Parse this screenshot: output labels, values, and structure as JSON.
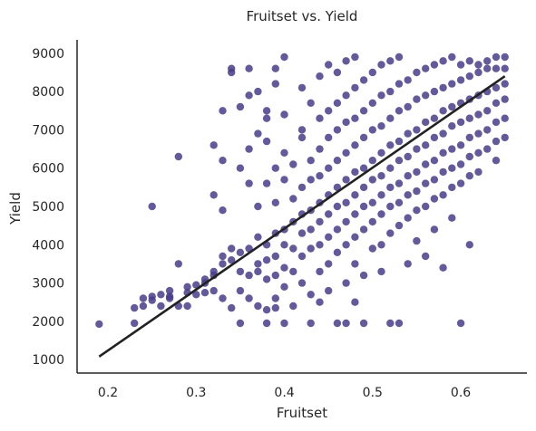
{
  "chart_data": {
    "type": "scatter",
    "title": "Fruitset vs. Yield",
    "xlabel": "Fruitset",
    "ylabel": "Yield",
    "xlim": [
      0.165,
      0.675
    ],
    "ylim": [
      650,
      9350
    ],
    "x_ticks": [
      0.2,
      0.3,
      0.4,
      0.5,
      0.6
    ],
    "x_tick_labels": [
      "0.2",
      "0.3",
      "0.4",
      "0.5",
      "0.6"
    ],
    "y_ticks": [
      1000,
      2000,
      3000,
      4000,
      5000,
      6000,
      7000,
      8000,
      9000
    ],
    "y_tick_labels": [
      "1000",
      "2000",
      "3000",
      "4000",
      "5000",
      "6000",
      "7000",
      "8000",
      "9000"
    ],
    "grid": false,
    "point_color": "#483d8b",
    "line_color": "#222222",
    "regression_line": {
      "x": [
        0.19,
        0.65
      ],
      "y": [
        1080,
        8400
      ]
    },
    "series": [
      {
        "points": [
          [
            0.19,
            1930
          ],
          [
            0.23,
            1950
          ],
          [
            0.23,
            2350
          ],
          [
            0.24,
            2400
          ],
          [
            0.24,
            2600
          ],
          [
            0.25,
            2650
          ],
          [
            0.25,
            2550
          ],
          [
            0.25,
            5000
          ],
          [
            0.26,
            2700
          ],
          [
            0.26,
            2400
          ],
          [
            0.27,
            2650
          ],
          [
            0.27,
            2800
          ],
          [
            0.27,
            2600
          ],
          [
            0.28,
            3500
          ],
          [
            0.28,
            6300
          ],
          [
            0.28,
            2400
          ],
          [
            0.29,
            2750
          ],
          [
            0.29,
            2900
          ],
          [
            0.29,
            2400
          ],
          [
            0.3,
            2700
          ],
          [
            0.3,
            2950
          ],
          [
            0.31,
            2750
          ],
          [
            0.31,
            3000
          ],
          [
            0.31,
            3100
          ],
          [
            0.32,
            3300
          ],
          [
            0.32,
            2800
          ],
          [
            0.32,
            3200
          ],
          [
            0.32,
            5300
          ],
          [
            0.32,
            6600
          ],
          [
            0.33,
            6200
          ],
          [
            0.33,
            7500
          ],
          [
            0.33,
            3500
          ],
          [
            0.33,
            3700
          ],
          [
            0.33,
            4900
          ],
          [
            0.33,
            2600
          ],
          [
            0.34,
            8600
          ],
          [
            0.34,
            8500
          ],
          [
            0.34,
            3600
          ],
          [
            0.34,
            3900
          ],
          [
            0.34,
            2350
          ],
          [
            0.35,
            7600
          ],
          [
            0.35,
            3300
          ],
          [
            0.35,
            3800
          ],
          [
            0.35,
            2800
          ],
          [
            0.35,
            1950
          ],
          [
            0.35,
            6000
          ],
          [
            0.36,
            7900
          ],
          [
            0.36,
            8600
          ],
          [
            0.36,
            3200
          ],
          [
            0.36,
            3900
          ],
          [
            0.36,
            2600
          ],
          [
            0.36,
            5600
          ],
          [
            0.36,
            6500
          ],
          [
            0.37,
            8000
          ],
          [
            0.37,
            3500
          ],
          [
            0.37,
            3300
          ],
          [
            0.37,
            4200
          ],
          [
            0.37,
            2400
          ],
          [
            0.37,
            5000
          ],
          [
            0.37,
            6900
          ],
          [
            0.38,
            7500
          ],
          [
            0.38,
            7300
          ],
          [
            0.38,
            4000
          ],
          [
            0.38,
            3600
          ],
          [
            0.38,
            3100
          ],
          [
            0.38,
            2300
          ],
          [
            0.38,
            5600
          ],
          [
            0.38,
            6700
          ],
          [
            0.38,
            1950
          ],
          [
            0.39,
            8600
          ],
          [
            0.39,
            8200
          ],
          [
            0.39,
            4300
          ],
          [
            0.39,
            3700
          ],
          [
            0.39,
            3200
          ],
          [
            0.39,
            2600
          ],
          [
            0.39,
            5100
          ],
          [
            0.39,
            6000
          ],
          [
            0.39,
            2350
          ],
          [
            0.4,
            7400
          ],
          [
            0.4,
            4400
          ],
          [
            0.4,
            4000
          ],
          [
            0.4,
            3400
          ],
          [
            0.4,
            2900
          ],
          [
            0.4,
            5700
          ],
          [
            0.4,
            6400
          ],
          [
            0.4,
            8900
          ],
          [
            0.4,
            1950
          ],
          [
            0.41,
            4600
          ],
          [
            0.41,
            3900
          ],
          [
            0.41,
            3300
          ],
          [
            0.41,
            5200
          ],
          [
            0.41,
            6100
          ],
          [
            0.41,
            2400
          ],
          [
            0.42,
            4800
          ],
          [
            0.42,
            4300
          ],
          [
            0.42,
            3700
          ],
          [
            0.42,
            5500
          ],
          [
            0.42,
            6800
          ],
          [
            0.42,
            7000
          ],
          [
            0.42,
            8100
          ],
          [
            0.42,
            3000
          ],
          [
            0.43,
            4900
          ],
          [
            0.43,
            4400
          ],
          [
            0.43,
            3900
          ],
          [
            0.43,
            5700
          ],
          [
            0.43,
            6200
          ],
          [
            0.43,
            7700
          ],
          [
            0.43,
            2700
          ],
          [
            0.43,
            1950
          ],
          [
            0.44,
            5100
          ],
          [
            0.44,
            4600
          ],
          [
            0.44,
            4000
          ],
          [
            0.44,
            5800
          ],
          [
            0.44,
            6500
          ],
          [
            0.44,
            7300
          ],
          [
            0.44,
            8400
          ],
          [
            0.44,
            3300
          ],
          [
            0.44,
            2500
          ],
          [
            0.45,
            5300
          ],
          [
            0.45,
            4800
          ],
          [
            0.45,
            4200
          ],
          [
            0.45,
            6000
          ],
          [
            0.45,
            6800
          ],
          [
            0.45,
            7500
          ],
          [
            0.45,
            8700
          ],
          [
            0.45,
            3500
          ],
          [
            0.45,
            2800
          ],
          [
            0.46,
            5500
          ],
          [
            0.46,
            5000
          ],
          [
            0.46,
            4400
          ],
          [
            0.46,
            6200
          ],
          [
            0.46,
            7000
          ],
          [
            0.46,
            7700
          ],
          [
            0.46,
            8500
          ],
          [
            0.46,
            3800
          ],
          [
            0.46,
            1950
          ],
          [
            0.47,
            5700
          ],
          [
            0.47,
            5100
          ],
          [
            0.47,
            4600
          ],
          [
            0.47,
            6400
          ],
          [
            0.47,
            7200
          ],
          [
            0.47,
            7900
          ],
          [
            0.47,
            8800
          ],
          [
            0.47,
            4000
          ],
          [
            0.47,
            3000
          ],
          [
            0.47,
            1950
          ],
          [
            0.48,
            5900
          ],
          [
            0.48,
            5300
          ],
          [
            0.48,
            4800
          ],
          [
            0.48,
            6600
          ],
          [
            0.48,
            7300
          ],
          [
            0.48,
            8100
          ],
          [
            0.48,
            8900
          ],
          [
            0.48,
            4200
          ],
          [
            0.48,
            3500
          ],
          [
            0.48,
            2500
          ],
          [
            0.49,
            6000
          ],
          [
            0.49,
            5500
          ],
          [
            0.49,
            5000
          ],
          [
            0.49,
            6800
          ],
          [
            0.49,
            7500
          ],
          [
            0.49,
            8300
          ],
          [
            0.49,
            4400
          ],
          [
            0.49,
            3200
          ],
          [
            0.49,
            1950
          ],
          [
            0.5,
            6200
          ],
          [
            0.5,
            5700
          ],
          [
            0.5,
            5100
          ],
          [
            0.5,
            7000
          ],
          [
            0.5,
            7700
          ],
          [
            0.5,
            8500
          ],
          [
            0.5,
            4600
          ],
          [
            0.5,
            3900
          ],
          [
            0.51,
            6400
          ],
          [
            0.51,
            5800
          ],
          [
            0.51,
            5300
          ],
          [
            0.51,
            7100
          ],
          [
            0.51,
            7900
          ],
          [
            0.51,
            8700
          ],
          [
            0.51,
            4800
          ],
          [
            0.51,
            4000
          ],
          [
            0.51,
            3300
          ],
          [
            0.52,
            6600
          ],
          [
            0.52,
            6000
          ],
          [
            0.52,
            5500
          ],
          [
            0.52,
            7300
          ],
          [
            0.52,
            8000
          ],
          [
            0.52,
            8800
          ],
          [
            0.52,
            5000
          ],
          [
            0.52,
            4300
          ],
          [
            0.52,
            1950
          ],
          [
            0.53,
            6700
          ],
          [
            0.53,
            6200
          ],
          [
            0.53,
            5600
          ],
          [
            0.53,
            7500
          ],
          [
            0.53,
            8200
          ],
          [
            0.53,
            8900
          ],
          [
            0.53,
            5100
          ],
          [
            0.53,
            4500
          ],
          [
            0.53,
            1950
          ],
          [
            0.54,
            6900
          ],
          [
            0.54,
            6300
          ],
          [
            0.54,
            5800
          ],
          [
            0.54,
            7600
          ],
          [
            0.54,
            8300
          ],
          [
            0.54,
            5300
          ],
          [
            0.54,
            4700
          ],
          [
            0.54,
            3500
          ],
          [
            0.55,
            7000
          ],
          [
            0.55,
            6500
          ],
          [
            0.55,
            5900
          ],
          [
            0.55,
            7800
          ],
          [
            0.55,
            8500
          ],
          [
            0.55,
            5400
          ],
          [
            0.55,
            4900
          ],
          [
            0.55,
            4100
          ],
          [
            0.56,
            7200
          ],
          [
            0.56,
            6600
          ],
          [
            0.56,
            6100
          ],
          [
            0.56,
            7900
          ],
          [
            0.56,
            8600
          ],
          [
            0.56,
            5600
          ],
          [
            0.56,
            5000
          ],
          [
            0.56,
            3700
          ],
          [
            0.57,
            7300
          ],
          [
            0.57,
            6800
          ],
          [
            0.57,
            6200
          ],
          [
            0.57,
            8000
          ],
          [
            0.57,
            8700
          ],
          [
            0.57,
            5700
          ],
          [
            0.57,
            5200
          ],
          [
            0.57,
            4400
          ],
          [
            0.58,
            7500
          ],
          [
            0.58,
            6900
          ],
          [
            0.58,
            6400
          ],
          [
            0.58,
            8100
          ],
          [
            0.58,
            8800
          ],
          [
            0.58,
            5900
          ],
          [
            0.58,
            5300
          ],
          [
            0.58,
            3400
          ],
          [
            0.59,
            7600
          ],
          [
            0.59,
            7100
          ],
          [
            0.59,
            6500
          ],
          [
            0.59,
            8200
          ],
          [
            0.59,
            8900
          ],
          [
            0.59,
            6000
          ],
          [
            0.59,
            5500
          ],
          [
            0.59,
            4700
          ],
          [
            0.6,
            7700
          ],
          [
            0.6,
            7200
          ],
          [
            0.6,
            6600
          ],
          [
            0.6,
            8300
          ],
          [
            0.6,
            8700
          ],
          [
            0.6,
            6100
          ],
          [
            0.6,
            5600
          ],
          [
            0.6,
            1950
          ],
          [
            0.61,
            7800
          ],
          [
            0.61,
            7300
          ],
          [
            0.61,
            6800
          ],
          [
            0.61,
            8400
          ],
          [
            0.61,
            8800
          ],
          [
            0.61,
            6300
          ],
          [
            0.61,
            5800
          ],
          [
            0.61,
            4000
          ],
          [
            0.62,
            7900
          ],
          [
            0.62,
            7400
          ],
          [
            0.62,
            6900
          ],
          [
            0.62,
            8500
          ],
          [
            0.62,
            8700
          ],
          [
            0.62,
            6400
          ],
          [
            0.62,
            5900
          ],
          [
            0.63,
            8000
          ],
          [
            0.63,
            7500
          ],
          [
            0.63,
            7000
          ],
          [
            0.63,
            8600
          ],
          [
            0.63,
            8800
          ],
          [
            0.63,
            6500
          ],
          [
            0.64,
            8100
          ],
          [
            0.64,
            7700
          ],
          [
            0.64,
            7200
          ],
          [
            0.64,
            8600
          ],
          [
            0.64,
            8900
          ],
          [
            0.64,
            6700
          ],
          [
            0.64,
            6200
          ],
          [
            0.65,
            8200
          ],
          [
            0.65,
            7800
          ],
          [
            0.65,
            7300
          ],
          [
            0.65,
            8600
          ],
          [
            0.65,
            8900
          ],
          [
            0.65,
            6800
          ]
        ]
      }
    ]
  }
}
